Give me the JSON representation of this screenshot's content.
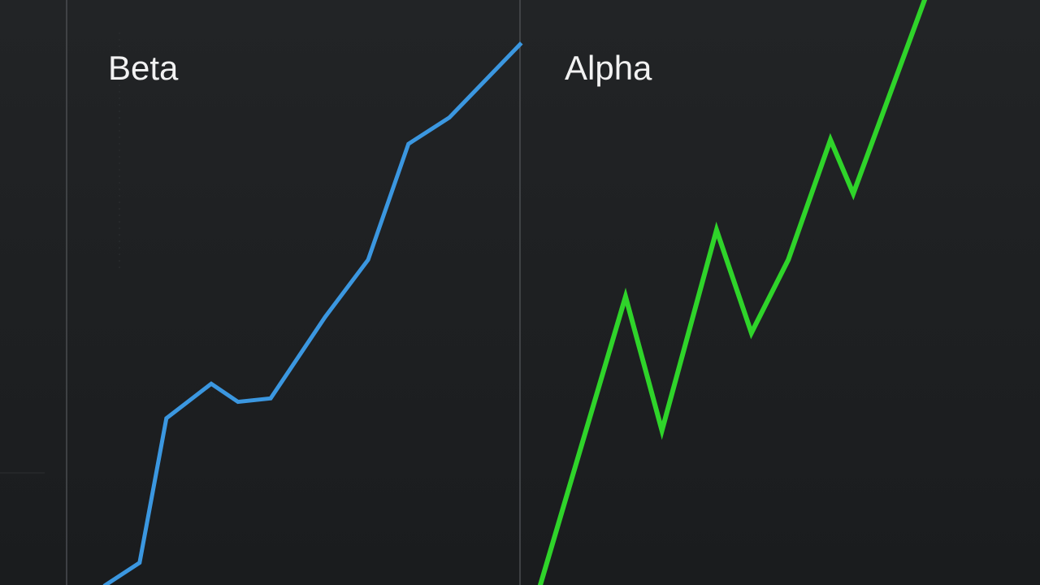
{
  "chart_data": [
    {
      "type": "line",
      "title": "Beta",
      "color": "#3b97e0",
      "x": [
        8.6,
        16.1,
        22.0,
        31.9,
        37.8,
        45.0,
        57.0,
        66.5,
        75.4,
        84.4,
        100
      ],
      "values": [
        0,
        3.8,
        28.5,
        34.4,
        31.3,
        31.9,
        45.8,
        55.6,
        75.4,
        79.9,
        92.4
      ],
      "xlim": [
        0,
        100
      ],
      "ylim": [
        0,
        100
      ]
    },
    {
      "type": "line",
      "title": "Alpha",
      "color": "#2fd42a",
      "x": [
        3.9,
        20.3,
        27.3,
        37.8,
        44.5,
        51.6,
        59.7,
        64.1,
        77.8
      ],
      "values": [
        0,
        49.3,
        26.4,
        60.7,
        43.1,
        55.6,
        76.1,
        66.9,
        100
      ],
      "xlim": [
        0,
        100
      ],
      "ylim": [
        0,
        100
      ]
    }
  ]
}
